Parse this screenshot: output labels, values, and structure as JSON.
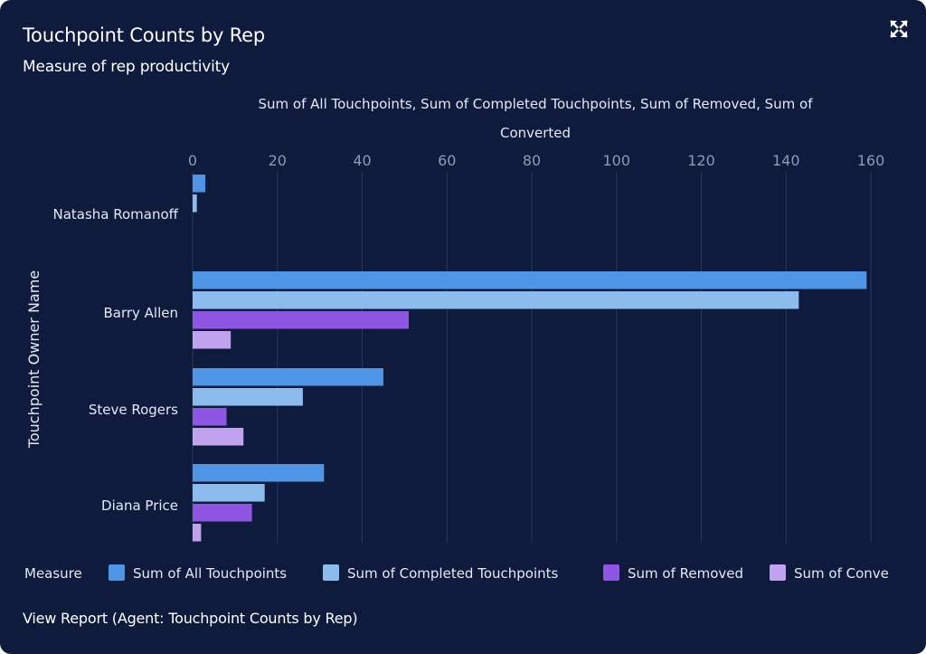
{
  "header": {
    "title": "Touchpoint Counts by Rep",
    "subtitle": "Measure of rep productivity",
    "expand_icon": "expand-arrows-icon"
  },
  "footer": {
    "view_report_label": "View Report (Agent: Touchpoint Counts by Rep)"
  },
  "colors": {
    "background": "#0f1b3c",
    "all": "#4f95e6",
    "completed": "#8cbcee",
    "removed": "#8f55e3",
    "converted": "#c0a2ee",
    "grid": "#2a3858",
    "tick_text": "#8d9ab5",
    "label_text": "#e4e9f3"
  },
  "chart_data": {
    "type": "bar",
    "orientation": "horizontal",
    "axis_title_top_lines": [
      "Sum of All Touchpoints, Sum of Completed Touchpoints, Sum of Removed, Sum of",
      "Converted"
    ],
    "ylabel": "Touchpoint Owner Name",
    "categories": [
      "Natasha Romanoff",
      "Barry Allen",
      "Steve Rogers",
      "Diana Price"
    ],
    "xlim": [
      0,
      160
    ],
    "xticks": [
      0,
      20,
      40,
      60,
      80,
      100,
      120,
      140,
      160
    ],
    "grid": true,
    "legend_title": "Measure",
    "legend_position": "bottom",
    "series": [
      {
        "name": "Sum of All Touchpoints",
        "legend_label": "Sum of All Touchpoints",
        "values": [
          3,
          159,
          45,
          31
        ]
      },
      {
        "name": "Sum of Completed Touchpoints",
        "legend_label": "Sum of Completed Touchpoints",
        "values": [
          1,
          143,
          26,
          17
        ]
      },
      {
        "name": "Sum of Removed",
        "legend_label": "Sum of Removed",
        "values": [
          0,
          51,
          8,
          14
        ]
      },
      {
        "name": "Sum of Converted",
        "legend_label": "Sum of Conve",
        "values": [
          0,
          9,
          12,
          2
        ]
      }
    ]
  }
}
